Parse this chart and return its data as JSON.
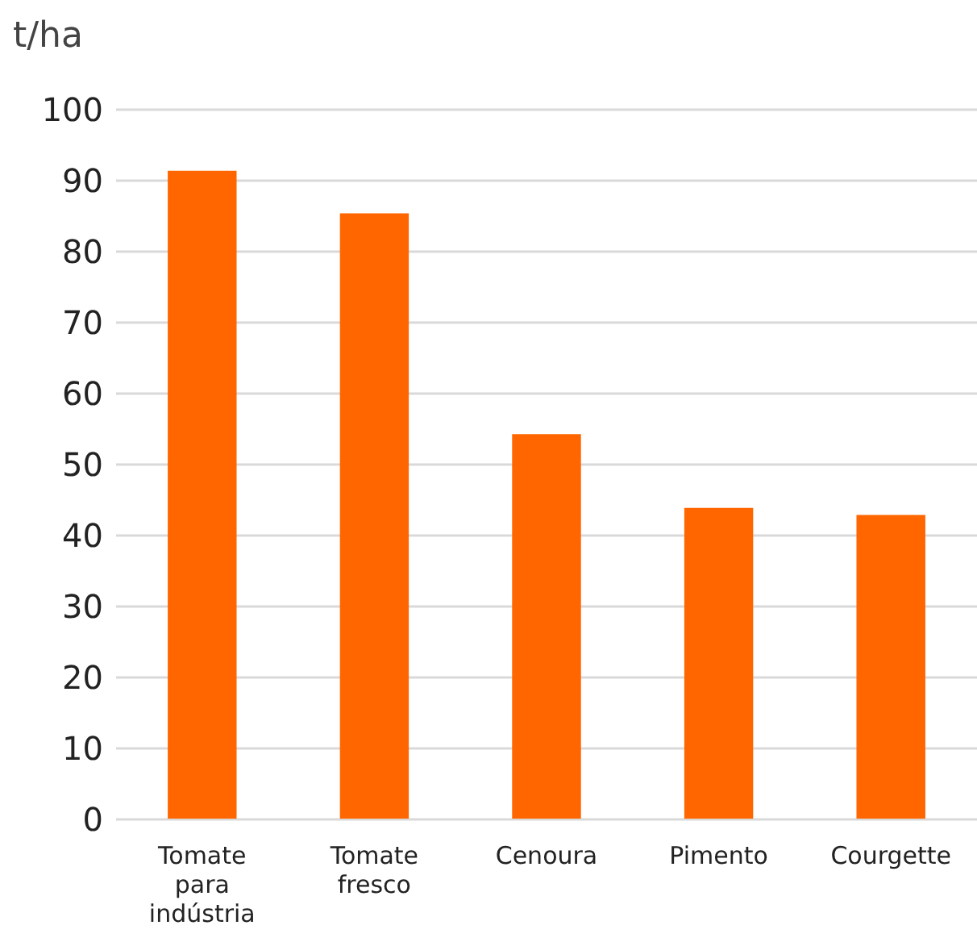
{
  "chart_data": {
    "type": "bar",
    "ylabel": "t/ha",
    "categories": [
      "Tomate para indústria",
      "Tomate fresco",
      "Cenoura",
      "Pimento",
      "Courgette"
    ],
    "values": [
      91.4,
      85.4,
      54.3,
      43.9,
      42.9
    ],
    "color": "#ff6600",
    "ylim": [
      0,
      100
    ],
    "yticks": [
      0,
      10,
      20,
      30,
      40,
      50,
      60,
      70,
      80,
      90,
      100
    ],
    "grid": "y"
  }
}
